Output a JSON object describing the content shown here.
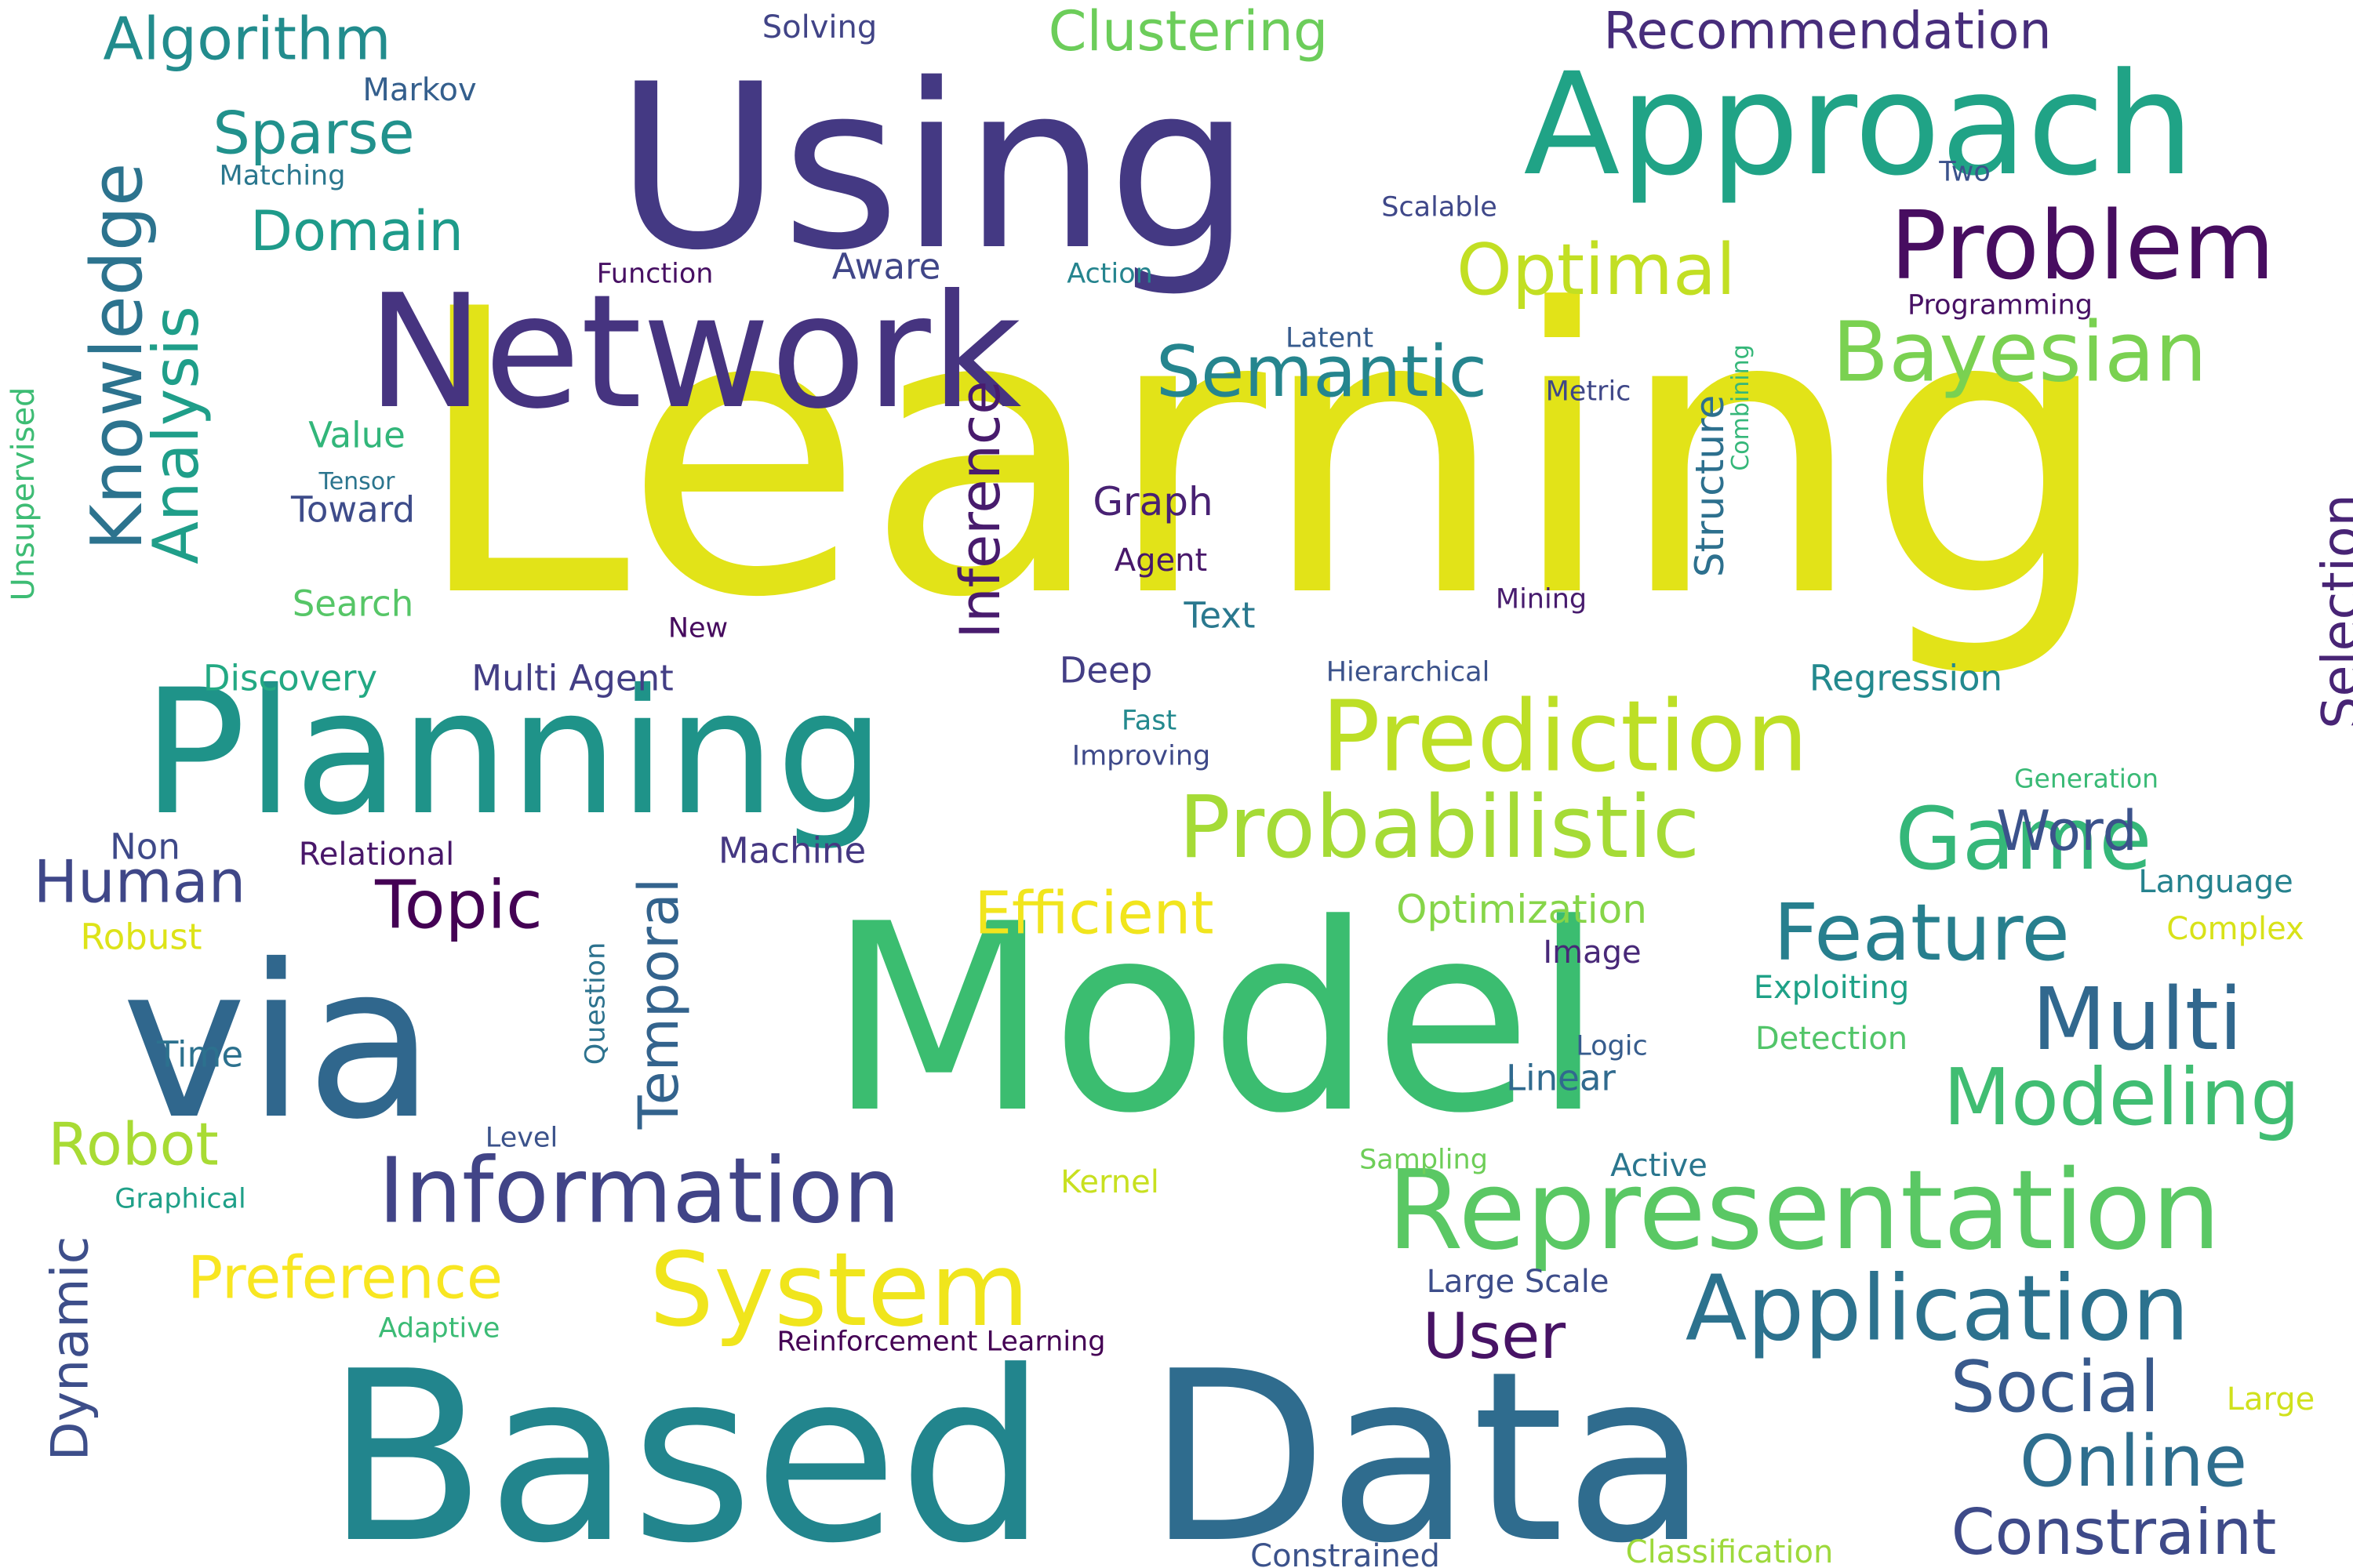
{
  "words": [
    {
      "text": "Learning",
      "color": "#e2e318"
    },
    {
      "text": "Model",
      "color": "#3bbd70"
    },
    {
      "text": "Based",
      "color": "#22858d"
    },
    {
      "text": "Data",
      "color": "#2f6c8e"
    },
    {
      "text": "Using",
      "color": "#443983"
    },
    {
      "text": "Planning",
      "color": "#1f9389"
    },
    {
      "text": "via",
      "color": "#30678d"
    },
    {
      "text": "Network",
      "color": "#463480"
    },
    {
      "text": "Approach",
      "color": "#20a386"
    },
    {
      "text": "Representation",
      "color": "#5ac864"
    },
    {
      "text": "Problem",
      "color": "#470d60"
    },
    {
      "text": "Prediction",
      "color": "#bddf26"
    },
    {
      "text": "System",
      "color": "#f0e51c"
    },
    {
      "text": "Information",
      "color": "#414487"
    },
    {
      "text": "Probabilistic",
      "color": "#a5db36"
    },
    {
      "text": "Application",
      "color": "#2c728e"
    },
    {
      "text": "Bayesian",
      "color": "#7ad151"
    },
    {
      "text": "Game",
      "color": "#35b779"
    },
    {
      "text": "Multi",
      "color": "#31688e"
    },
    {
      "text": "Feature",
      "color": "#277f8e"
    },
    {
      "text": "Modeling",
      "color": "#40bd72"
    },
    {
      "text": "Semantic",
      "color": "#25858e"
    },
    {
      "text": "Optimal",
      "color": "#c2df23"
    },
    {
      "text": "Social",
      "color": "#38598c"
    },
    {
      "text": "Online",
      "color": "#2e6e8e"
    },
    {
      "text": "Constraint",
      "color": "#3e4a89"
    },
    {
      "text": "Knowledge",
      "color": "#2c738e"
    },
    {
      "text": "Analysis",
      "color": "#1f9e89"
    },
    {
      "text": "Inference",
      "color": "#481b6d"
    },
    {
      "text": "Algorithm",
      "color": "#228c8d"
    },
    {
      "text": "Clustering",
      "color": "#6ccd5a"
    },
    {
      "text": "Recommendation",
      "color": "#472d7b"
    },
    {
      "text": "Sparse",
      "color": "#21918c"
    },
    {
      "text": "Domain",
      "color": "#1e9b8a"
    },
    {
      "text": "Topic",
      "color": "#440154"
    },
    {
      "text": "Human",
      "color": "#3f4788"
    },
    {
      "text": "Efficient",
      "color": "#f1e51d"
    },
    {
      "text": "Robot",
      "color": "#a8db34"
    },
    {
      "text": "Preference",
      "color": "#f8e621"
    },
    {
      "text": "User",
      "color": "#471365"
    },
    {
      "text": "Word",
      "color": "#3b528b"
    },
    {
      "text": "Temporal",
      "color": "#33638d"
    },
    {
      "text": "Dynamic",
      "color": "#3d4e8a"
    },
    {
      "text": "Selection",
      "color": "#482475"
    },
    {
      "text": "Structure",
      "color": "#2d708e"
    },
    {
      "text": "Optimization",
      "color": "#86d549"
    },
    {
      "text": "Regression",
      "color": "#23898e"
    },
    {
      "text": "Graph",
      "color": "#482173"
    },
    {
      "text": "Deep",
      "color": "#433e85"
    },
    {
      "text": "Text",
      "color": "#2a788e"
    },
    {
      "text": "Agent",
      "color": "#48186a"
    },
    {
      "text": "Aware",
      "color": "#404688"
    },
    {
      "text": "Toward",
      "color": "#3e4c8a"
    },
    {
      "text": "Value",
      "color": "#32b67a"
    },
    {
      "text": "Search",
      "color": "#56c667"
    },
    {
      "text": "Discovery",
      "color": "#23a983"
    },
    {
      "text": "Multi Agent",
      "color": "#433e85"
    },
    {
      "text": "Relational",
      "color": "#481769"
    },
    {
      "text": "Non",
      "color": "#3e4989"
    },
    {
      "text": "Machine",
      "color": "#453882"
    },
    {
      "text": "Robust",
      "color": "#dde318"
    },
    {
      "text": "Time",
      "color": "#2c718e"
    },
    {
      "text": "Image",
      "color": "#482878"
    },
    {
      "text": "Exploiting",
      "color": "#1fa187"
    },
    {
      "text": "Detection",
      "color": "#52c569"
    },
    {
      "text": "Language",
      "color": "#26828e"
    },
    {
      "text": "Complex",
      "color": "#d8e219"
    },
    {
      "text": "Linear",
      "color": "#306a8e"
    },
    {
      "text": "Logic",
      "color": "#365c8d"
    },
    {
      "text": "Active",
      "color": "#2a768e"
    },
    {
      "text": "Large Scale",
      "color": "#3d4d8a"
    },
    {
      "text": "Large",
      "color": "#d0e11c"
    },
    {
      "text": "Classification",
      "color": "#9dd93b"
    },
    {
      "text": "Constrained",
      "color": "#3b528b"
    },
    {
      "text": "Reinforcement Learning",
      "color": "#440154"
    },
    {
      "text": "Adaptive",
      "color": "#3bbb75"
    },
    {
      "text": "Kernel",
      "color": "#c8e020"
    },
    {
      "text": "Sampling",
      "color": "#6ece58"
    },
    {
      "text": "Graphical",
      "color": "#1fa088"
    },
    {
      "text": "Level",
      "color": "#3b528b"
    },
    {
      "text": "Question",
      "color": "#2c728e"
    },
    {
      "text": "Markov",
      "color": "#345f8d"
    },
    {
      "text": "Matching",
      "color": "#2a778e"
    },
    {
      "text": "Solving",
      "color": "#414487"
    },
    {
      "text": "Function",
      "color": "#471063"
    },
    {
      "text": "Action",
      "color": "#25848e"
    },
    {
      "text": "Scalable",
      "color": "#3f4889"
    },
    {
      "text": "Two",
      "color": "#3b528b"
    },
    {
      "text": "Programming",
      "color": "#471164"
    },
    {
      "text": "Latent",
      "color": "#375b8d"
    },
    {
      "text": "Metric",
      "color": "#3f4788"
    },
    {
      "text": "Combining",
      "color": "#35b779"
    },
    {
      "text": "Mining",
      "color": "#481c6e"
    },
    {
      "text": "Hierarchical",
      "color": "#3b528b"
    },
    {
      "text": "New",
      "color": "#460b5e"
    },
    {
      "text": "Tensor",
      "color": "#2b758e"
    },
    {
      "text": "Unsupervised",
      "color": "#3dbc74"
    },
    {
      "text": "Fast",
      "color": "#23898e"
    },
    {
      "text": "Improving",
      "color": "#3e4989"
    },
    {
      "text": "Generation",
      "color": "#3aba76"
    }
  ]
}
